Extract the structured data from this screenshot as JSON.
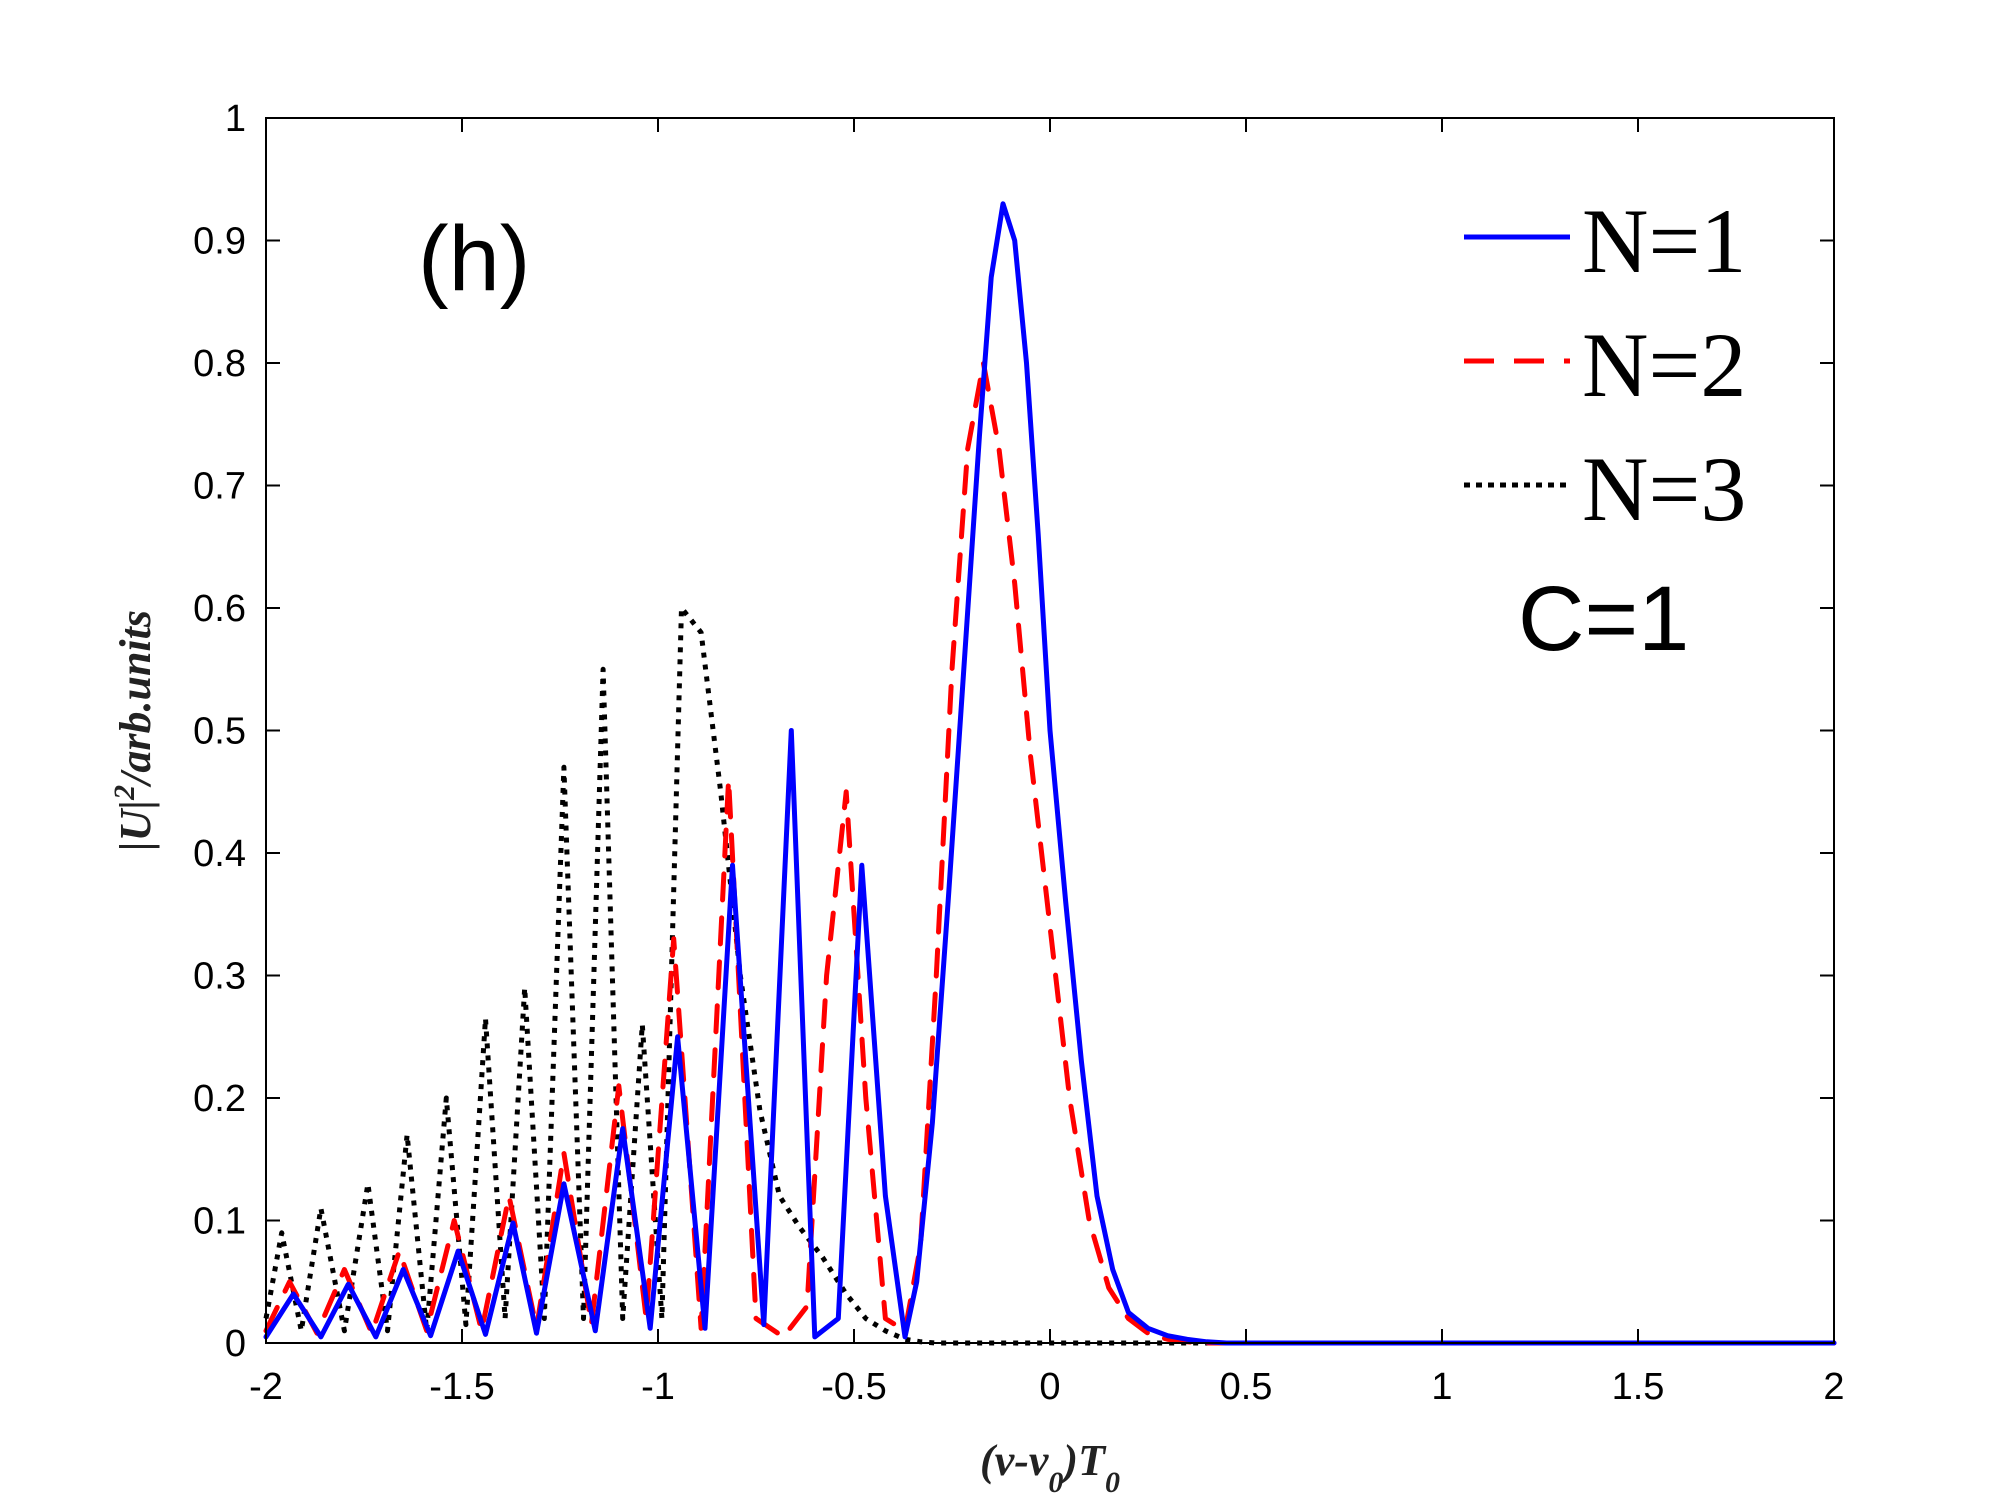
{
  "chart_data": {
    "type": "line",
    "title": "",
    "panel_label": "(h)",
    "annotation": "C=1",
    "xlabel": {
      "main": "(v-v",
      "sub": "0",
      "mid": ")T",
      "sub2": "0"
    },
    "ylabel": {
      "main": "|U|",
      "sup": "2",
      "rest": "/arb.units"
    },
    "xlim": [
      -2,
      2
    ],
    "ylim": [
      0,
      1
    ],
    "xticks": [
      -2,
      -1.5,
      -1,
      -0.5,
      0,
      0.5,
      1,
      1.5,
      2
    ],
    "xtick_labels": [
      "-2",
      "-1.5",
      "-1",
      "-0.5",
      "0",
      "0.5",
      "1",
      "1.5",
      "2"
    ],
    "yticks": [
      0,
      0.1,
      0.2,
      0.3,
      0.4,
      0.5,
      0.6,
      0.7,
      0.8,
      0.9,
      1
    ],
    "ytick_labels": [
      "0",
      "0.1",
      "0.2",
      "0.3",
      "0.4",
      "0.5",
      "0.6",
      "0.7",
      "0.8",
      "0.9",
      "1"
    ],
    "grid": false,
    "legend_position": "top-right",
    "series": [
      {
        "name": "N=1",
        "color": "#0000ff",
        "style": "solid",
        "x": [
          -2.0,
          -1.93,
          -1.86,
          -1.79,
          -1.72,
          -1.65,
          -1.58,
          -1.51,
          -1.44,
          -1.37,
          -1.31,
          -1.24,
          -1.16,
          -1.09,
          -1.02,
          -0.95,
          -0.88,
          -0.81,
          -0.73,
          -0.66,
          -0.6,
          -0.54,
          -0.48,
          -0.42,
          -0.37,
          -0.34,
          -0.3,
          -0.26,
          -0.22,
          -0.18,
          -0.15,
          -0.12,
          -0.09,
          -0.06,
          -0.03,
          0.0,
          0.04,
          0.08,
          0.12,
          0.16,
          0.2,
          0.25,
          0.3,
          0.35,
          0.4,
          0.45,
          0.5,
          0.6,
          0.8,
          1.0,
          1.5,
          2.0
        ],
        "y": [
          0.005,
          0.04,
          0.005,
          0.048,
          0.005,
          0.06,
          0.006,
          0.075,
          0.007,
          0.098,
          0.008,
          0.13,
          0.01,
          0.175,
          0.012,
          0.25,
          0.012,
          0.39,
          0.015,
          0.5,
          0.005,
          0.02,
          0.39,
          0.12,
          0.005,
          0.05,
          0.18,
          0.36,
          0.55,
          0.74,
          0.87,
          0.93,
          0.9,
          0.8,
          0.66,
          0.5,
          0.36,
          0.23,
          0.12,
          0.06,
          0.025,
          0.012,
          0.006,
          0.003,
          0.001,
          0.0,
          0.0,
          0.0,
          0.0,
          0.0,
          0.0,
          0.0
        ]
      },
      {
        "name": "N=2",
        "color": "#ff0000",
        "style": "dashed",
        "x": [
          -2.0,
          -1.94,
          -1.87,
          -1.8,
          -1.73,
          -1.66,
          -1.59,
          -1.52,
          -1.45,
          -1.38,
          -1.31,
          -1.24,
          -1.17,
          -1.1,
          -1.03,
          -0.96,
          -0.89,
          -0.82,
          -0.75,
          -0.68,
          -0.62,
          -0.57,
          -0.52,
          -0.47,
          -0.42,
          -0.37,
          -0.33,
          -0.29,
          -0.25,
          -0.21,
          -0.17,
          -0.13,
          -0.09,
          -0.05,
          0.0,
          0.05,
          0.1,
          0.15,
          0.2,
          0.25,
          0.3,
          0.35,
          0.4,
          0.45,
          0.5,
          0.6,
          0.8,
          1.0,
          1.5,
          2.0
        ],
        "y": [
          0.01,
          0.05,
          0.008,
          0.06,
          0.008,
          0.075,
          0.01,
          0.1,
          0.01,
          0.12,
          0.012,
          0.155,
          0.015,
          0.21,
          0.02,
          0.33,
          0.012,
          0.46,
          0.02,
          0.005,
          0.03,
          0.3,
          0.45,
          0.2,
          0.02,
          0.01,
          0.08,
          0.3,
          0.55,
          0.73,
          0.8,
          0.73,
          0.62,
          0.48,
          0.34,
          0.2,
          0.1,
          0.045,
          0.02,
          0.008,
          0.003,
          0.001,
          0.0,
          0.0,
          0.0,
          0.0,
          0.0,
          0.0,
          0.0,
          0.0
        ]
      },
      {
        "name": "N=3",
        "color": "#000000",
        "style": "dotted",
        "x": [
          -2.0,
          -1.96,
          -1.91,
          -1.86,
          -1.8,
          -1.74,
          -1.69,
          -1.64,
          -1.59,
          -1.54,
          -1.49,
          -1.44,
          -1.39,
          -1.34,
          -1.29,
          -1.24,
          -1.19,
          -1.14,
          -1.09,
          -1.04,
          -0.99,
          -0.94,
          -0.89,
          -0.84,
          -0.79,
          -0.74,
          -0.69,
          -0.64,
          -0.58,
          -0.52,
          -0.47,
          -0.42,
          -0.37,
          -0.33,
          -0.29,
          -0.25,
          -0.21,
          -0.17,
          -0.13,
          -0.09,
          -0.05,
          0.0,
          0.05,
          0.1,
          0.15,
          0.2,
          0.25,
          0.3,
          0.4,
          0.5,
          1.0,
          1.5,
          2.0
        ],
        "y": [
          0.02,
          0.09,
          0.01,
          0.11,
          0.01,
          0.13,
          0.01,
          0.17,
          0.01,
          0.2,
          0.015,
          0.265,
          0.02,
          0.29,
          0.02,
          0.47,
          0.02,
          0.55,
          0.02,
          0.26,
          0.02,
          0.6,
          0.58,
          0.45,
          0.3,
          0.19,
          0.12,
          0.095,
          0.07,
          0.04,
          0.02,
          0.01,
          0.003,
          0.001,
          0.0,
          0.0,
          0.0,
          0.0,
          0.0,
          0.0,
          0.0,
          0.0,
          0.0,
          0.0,
          0.0,
          0.0,
          0.0,
          0.0,
          0.0,
          0.0,
          0.0,
          0.0,
          0.0
        ]
      }
    ]
  }
}
